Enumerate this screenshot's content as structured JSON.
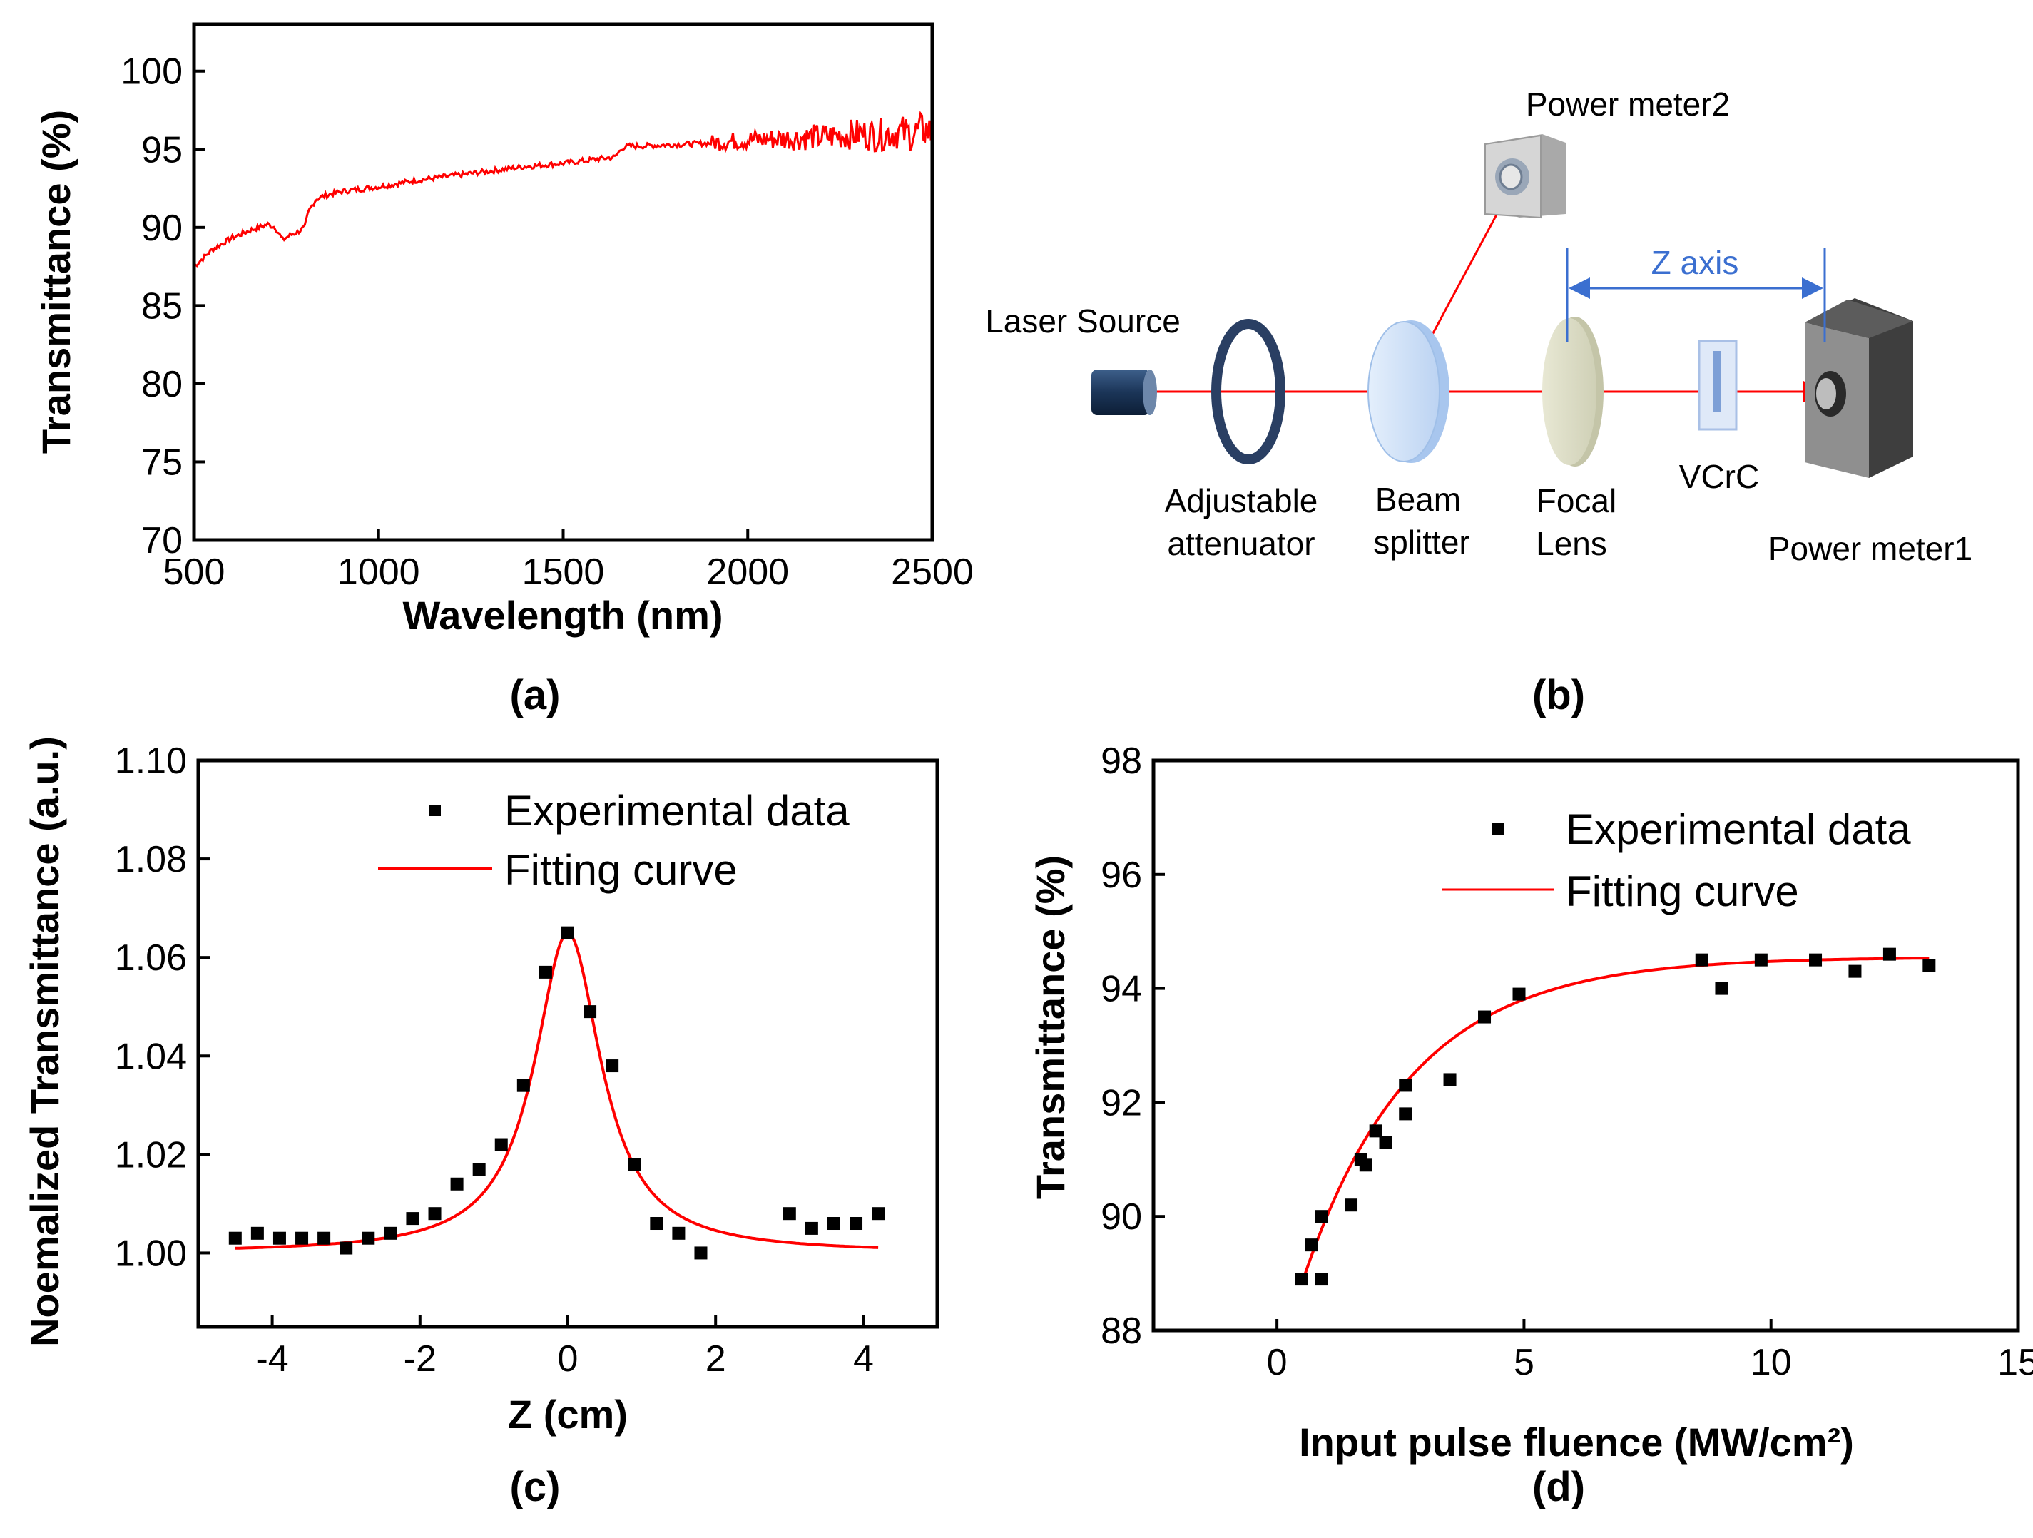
{
  "colors": {
    "red": "#ff0000",
    "blue": "#3b6fd0",
    "black": "#000000"
  },
  "chart_data": [
    {
      "type": "line",
      "panel": "(a)",
      "xlabel": "Wavelength (nm)",
      "ylabel": "Transmittance (%)",
      "xlim": [
        500,
        2500
      ],
      "ylim": [
        70,
        103
      ],
      "xticks": [
        500,
        1000,
        1500,
        2000,
        2500
      ],
      "yticks": [
        70,
        75,
        80,
        85,
        90,
        95,
        100
      ],
      "series": [
        {
          "name": "Transmittance",
          "color": "#ff0000",
          "x": [
            500,
            550,
            600,
            650,
            700,
            720,
            740,
            760,
            780,
            800,
            810,
            830,
            850,
            900,
            1000,
            1100,
            1200,
            1300,
            1400,
            1500,
            1600,
            1640,
            1660,
            1680,
            1700,
            1800,
            1900,
            2000,
            2100,
            2200,
            2300,
            2350,
            2400,
            2450,
            2480,
            2500
          ],
          "y": [
            87.5,
            88.6,
            89.3,
            89.8,
            90.2,
            90.0,
            89.2,
            89.5,
            89.7,
            90.0,
            91.0,
            91.8,
            92.0,
            92.3,
            92.6,
            93.0,
            93.3,
            93.6,
            93.9,
            94.1,
            94.4,
            94.5,
            95.1,
            95.2,
            95.2,
            95.3,
            95.4,
            95.6,
            95.7,
            95.8,
            96.0,
            95.9,
            96.1,
            96.0,
            96.3,
            96.0
          ],
          "noise": 0.35
        }
      ]
    },
    {
      "type": "scatter",
      "panel": "(c)",
      "xlabel": "Z (cm)",
      "ylabel": "Noemalized Transmittance (a.u.)",
      "xlim": [
        -5,
        5
      ],
      "ylim": [
        0.985,
        1.1
      ],
      "xticks": [
        -4,
        -2,
        0,
        2,
        4
      ],
      "yticks": [
        1.0,
        1.02,
        1.04,
        1.06,
        1.08,
        1.1
      ],
      "ytick_labels": [
        "1.00",
        "1.02",
        "1.04",
        "1.06",
        "1.08",
        "1.10"
      ],
      "legend": [
        "Experimental data",
        "Fitting curve"
      ],
      "series": [
        {
          "name": "Experimental data",
          "x": [
            -4.5,
            -4.2,
            -3.9,
            -3.6,
            -3.3,
            -3.0,
            -2.7,
            -2.4,
            -2.1,
            -1.8,
            -1.5,
            -1.2,
            -0.9,
            -0.6,
            -0.3,
            0.0,
            0.3,
            0.6,
            0.9,
            1.2,
            1.5,
            1.8,
            3.0,
            3.3,
            3.6,
            3.9,
            4.2
          ],
          "y": [
            1.003,
            1.004,
            1.003,
            1.003,
            1.003,
            1.001,
            1.003,
            1.004,
            1.007,
            1.008,
            1.014,
            1.017,
            1.022,
            1.034,
            1.057,
            1.065,
            1.049,
            1.038,
            1.018,
            1.006,
            1.004,
            1.0,
            1.008,
            1.005,
            1.006,
            1.006,
            1.008
          ]
        },
        {
          "name": "Fitting curve",
          "color": "#ff0000",
          "x_range": [
            -4.5,
            4.2
          ],
          "base": 1.0,
          "amplitude": 0.065,
          "width": 0.55
        }
      ]
    },
    {
      "type": "scatter",
      "panel": "(d)",
      "xlabel": "Input pulse fluence (MW/cm²)",
      "ylabel": "Transmittance (%)",
      "xlim": [
        -2.5,
        15
      ],
      "ylim": [
        88,
        98
      ],
      "xticks": [
        0,
        5,
        10,
        15
      ],
      "yticks": [
        88,
        90,
        92,
        94,
        96,
        98
      ],
      "legend": [
        "Experimental data",
        "Fitting curve"
      ],
      "series": [
        {
          "name": "Experimental data",
          "x": [
            0.5,
            0.7,
            0.9,
            0.9,
            1.5,
            1.7,
            1.8,
            2.0,
            2.2,
            2.6,
            2.6,
            3.5,
            4.2,
            4.9,
            8.6,
            9.0,
            9.8,
            10.9,
            11.7,
            12.4,
            13.2
          ],
          "y": [
            88.9,
            89.5,
            90.0,
            88.9,
            90.2,
            91.0,
            90.9,
            91.5,
            91.3,
            92.3,
            91.8,
            92.4,
            93.5,
            93.9,
            94.5,
            94.0,
            94.5,
            94.5,
            94.3,
            94.6,
            94.4
          ]
        },
        {
          "name": "Fitting curve",
          "color": "#ff0000",
          "x_range": [
            0.5,
            13.2
          ],
          "asymptote": 94.55,
          "amplitude": 7.2,
          "tau": 2.2
        }
      ]
    }
  ],
  "diagram": {
    "panel": "(b)",
    "laser_source": "Laser Source",
    "attenuator_line1": "Adjustable",
    "attenuator_line2": "attenuator",
    "splitter_line1": "Beam",
    "splitter_line2": "splitter",
    "lens_line1": "Focal",
    "lens_line2": "Lens",
    "sample": "VCrC",
    "meter1": "Power meter1",
    "meter2": "Power meter2",
    "z_axis": "Z axis"
  }
}
